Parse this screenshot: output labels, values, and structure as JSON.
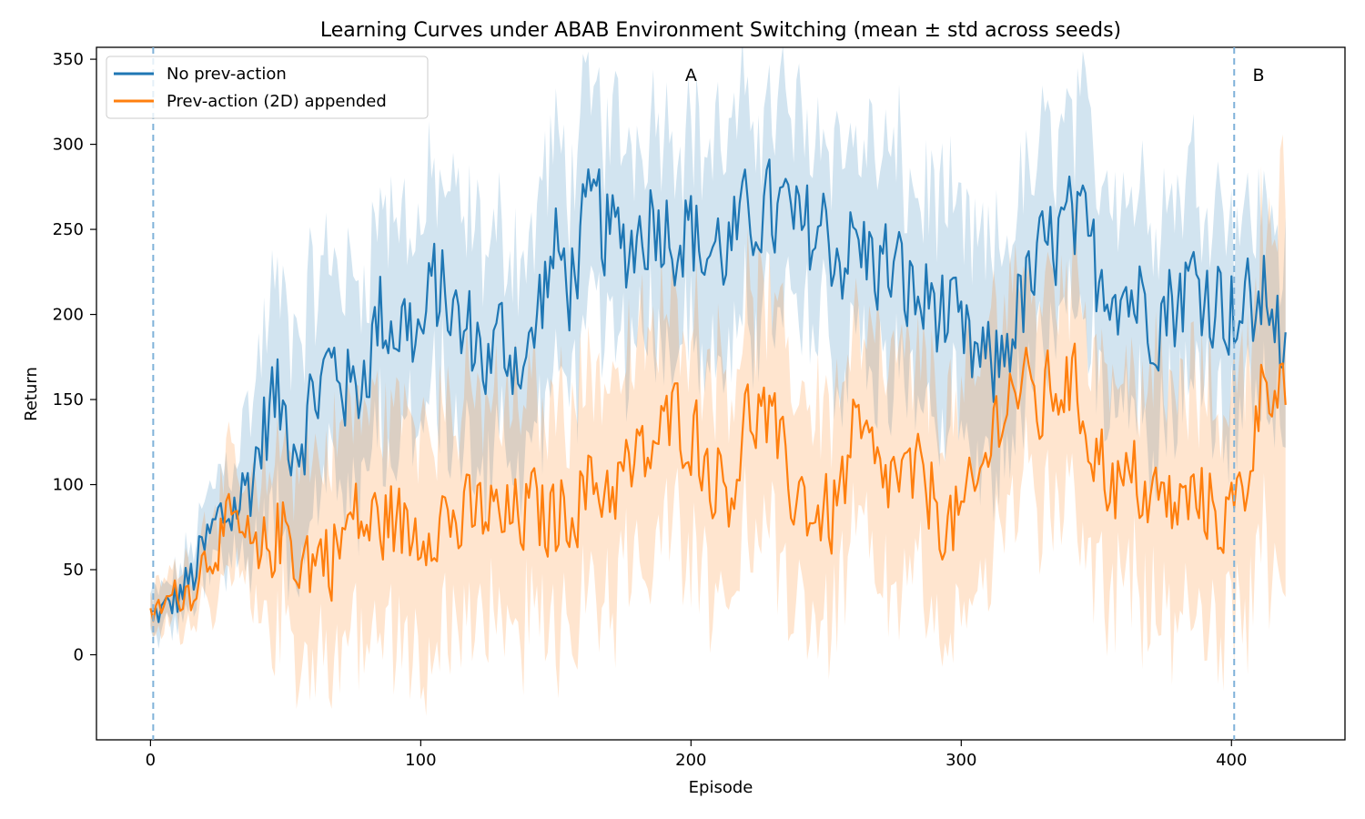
{
  "chart_data": {
    "type": "line",
    "title": "Learning Curves under ABAB Environment Switching (mean ± std across seeds)",
    "xlabel": "Episode",
    "ylabel": "Return",
    "xlim": [
      -20,
      442
    ],
    "ylim": [
      -50,
      357
    ],
    "xticks": [
      0,
      100,
      200,
      300,
      400
    ],
    "yticks": [
      0,
      50,
      100,
      150,
      200,
      250,
      300,
      350
    ],
    "legend_position": "top-left",
    "phase_boundaries": [
      1,
      401
    ],
    "phase_labels": [
      {
        "x": 200,
        "text": "A"
      },
      {
        "x": 410,
        "text": "B"
      }
    ],
    "colors": {
      "no_prev": "#1f77b4",
      "prev": "#ff7f0e",
      "boundary": "#7fb2d9"
    },
    "series": [
      {
        "name": "No prev-action",
        "color": "#1f77b4",
        "band_alpha": 0.2,
        "anchors": [
          [
            0,
            23,
            12
          ],
          [
            5,
            26,
            12
          ],
          [
            10,
            34,
            14
          ],
          [
            15,
            44,
            18
          ],
          [
            20,
            62,
            22
          ],
          [
            25,
            78,
            28
          ],
          [
            30,
            85,
            32
          ],
          [
            35,
            95,
            40
          ],
          [
            40,
            120,
            50
          ],
          [
            45,
            150,
            60
          ],
          [
            50,
            140,
            62
          ],
          [
            55,
            130,
            62
          ],
          [
            60,
            150,
            62
          ],
          [
            65,
            165,
            62
          ],
          [
            70,
            170,
            62
          ],
          [
            75,
            150,
            62
          ],
          [
            80,
            175,
            62
          ],
          [
            85,
            200,
            62
          ],
          [
            90,
            195,
            62
          ],
          [
            95,
            195,
            62
          ],
          [
            100,
            185,
            62
          ],
          [
            105,
            215,
            62
          ],
          [
            110,
            210,
            62
          ],
          [
            115,
            185,
            62
          ],
          [
            120,
            190,
            62
          ],
          [
            125,
            170,
            62
          ],
          [
            130,
            185,
            62
          ],
          [
            135,
            180,
            62
          ],
          [
            140,
            170,
            62
          ],
          [
            145,
            215,
            62
          ],
          [
            150,
            235,
            62
          ],
          [
            155,
            220,
            62
          ],
          [
            160,
            245,
            62
          ],
          [
            165,
            260,
            62
          ],
          [
            170,
            245,
            62
          ],
          [
            175,
            240,
            62
          ],
          [
            180,
            245,
            62
          ],
          [
            185,
            260,
            62
          ],
          [
            190,
            255,
            62
          ],
          [
            195,
            250,
            62
          ],
          [
            200,
            250,
            62
          ],
          [
            205,
            235,
            62
          ],
          [
            210,
            240,
            62
          ],
          [
            215,
            240,
            62
          ],
          [
            220,
            250,
            62
          ],
          [
            225,
            265,
            62
          ],
          [
            230,
            255,
            62
          ],
          [
            235,
            260,
            62
          ],
          [
            240,
            245,
            62
          ],
          [
            245,
            250,
            62
          ],
          [
            250,
            250,
            62
          ],
          [
            255,
            235,
            62
          ],
          [
            260,
            240,
            62
          ],
          [
            265,
            235,
            62
          ],
          [
            270,
            230,
            62
          ],
          [
            275,
            225,
            62
          ],
          [
            280,
            215,
            62
          ],
          [
            285,
            205,
            62
          ],
          [
            290,
            210,
            62
          ],
          [
            295,
            195,
            62
          ],
          [
            300,
            180,
            62
          ],
          [
            305,
            175,
            62
          ],
          [
            310,
            165,
            62
          ],
          [
            315,
            175,
            62
          ],
          [
            320,
            200,
            62
          ],
          [
            325,
            215,
            62
          ],
          [
            330,
            230,
            62
          ],
          [
            335,
            245,
            62
          ],
          [
            340,
            250,
            62
          ],
          [
            345,
            245,
            62
          ],
          [
            350,
            225,
            62
          ],
          [
            355,
            225,
            62
          ],
          [
            360,
            215,
            62
          ],
          [
            365,
            210,
            62
          ],
          [
            370,
            205,
            62
          ],
          [
            375,
            205,
            62
          ],
          [
            380,
            210,
            62
          ],
          [
            385,
            220,
            62
          ],
          [
            390,
            215,
            62
          ],
          [
            395,
            210,
            62
          ],
          [
            400,
            205,
            62
          ],
          [
            405,
            200,
            55
          ],
          [
            410,
            205,
            55
          ],
          [
            415,
            215,
            55
          ],
          [
            420,
            165,
            55
          ]
        ],
        "jitter": 40
      },
      {
        "name": "Prev-action (2D) appended",
        "color": "#ff7f0e",
        "band_alpha": 0.2,
        "anchors": [
          [
            0,
            22,
            12
          ],
          [
            5,
            30,
            14
          ],
          [
            10,
            36,
            16
          ],
          [
            15,
            38,
            18
          ],
          [
            20,
            55,
            22
          ],
          [
            25,
            68,
            28
          ],
          [
            30,
            75,
            32
          ],
          [
            35,
            65,
            34
          ],
          [
            40,
            48,
            36
          ],
          [
            45,
            70,
            44
          ],
          [
            50,
            72,
            50
          ],
          [
            55,
            60,
            55
          ],
          [
            60,
            55,
            58
          ],
          [
            65,
            60,
            60
          ],
          [
            70,
            65,
            62
          ],
          [
            75,
            80,
            66
          ],
          [
            80,
            75,
            66
          ],
          [
            85,
            78,
            66
          ],
          [
            90,
            80,
            66
          ],
          [
            95,
            70,
            66
          ],
          [
            100,
            75,
            66
          ],
          [
            105,
            85,
            66
          ],
          [
            110,
            80,
            66
          ],
          [
            115,
            75,
            66
          ],
          [
            120,
            80,
            66
          ],
          [
            125,
            85,
            66
          ],
          [
            130,
            75,
            66
          ],
          [
            135,
            80,
            66
          ],
          [
            140,
            85,
            66
          ],
          [
            145,
            80,
            66
          ],
          [
            150,
            80,
            66
          ],
          [
            155,
            90,
            66
          ],
          [
            160,
            95,
            66
          ],
          [
            165,
            100,
            66
          ],
          [
            170,
            100,
            66
          ],
          [
            175,
            105,
            66
          ],
          [
            180,
            110,
            66
          ],
          [
            185,
            120,
            66
          ],
          [
            190,
            130,
            66
          ],
          [
            195,
            140,
            66
          ],
          [
            200,
            135,
            66
          ],
          [
            205,
            115,
            66
          ],
          [
            210,
            105,
            66
          ],
          [
            215,
            100,
            66
          ],
          [
            220,
            135,
            66
          ],
          [
            225,
            145,
            66
          ],
          [
            230,
            130,
            66
          ],
          [
            235,
            105,
            66
          ],
          [
            240,
            95,
            66
          ],
          [
            245,
            85,
            66
          ],
          [
            250,
            80,
            66
          ],
          [
            255,
            90,
            66
          ],
          [
            260,
            125,
            66
          ],
          [
            265,
            120,
            66
          ],
          [
            270,
            100,
            66
          ],
          [
            275,
            105,
            66
          ],
          [
            280,
            100,
            66
          ],
          [
            285,
            100,
            66
          ],
          [
            290,
            95,
            66
          ],
          [
            295,
            75,
            66
          ],
          [
            300,
            80,
            66
          ],
          [
            305,
            90,
            66
          ],
          [
            310,
            120,
            66
          ],
          [
            315,
            150,
            66
          ],
          [
            320,
            160,
            66
          ],
          [
            325,
            150,
            66
          ],
          [
            330,
            145,
            66
          ],
          [
            335,
            160,
            66
          ],
          [
            340,
            160,
            66
          ],
          [
            345,
            145,
            66
          ],
          [
            350,
            120,
            66
          ],
          [
            355,
            105,
            66
          ],
          [
            360,
            95,
            66
          ],
          [
            365,
            105,
            66
          ],
          [
            370,
            90,
            66
          ],
          [
            375,
            90,
            66
          ],
          [
            380,
            85,
            66
          ],
          [
            385,
            90,
            66
          ],
          [
            390,
            90,
            66
          ],
          [
            395,
            85,
            66
          ],
          [
            400,
            80,
            66
          ],
          [
            405,
            100,
            75
          ],
          [
            410,
            150,
            90
          ],
          [
            415,
            170,
            100
          ],
          [
            420,
            160,
            100
          ]
        ],
        "jitter": 34
      }
    ]
  }
}
